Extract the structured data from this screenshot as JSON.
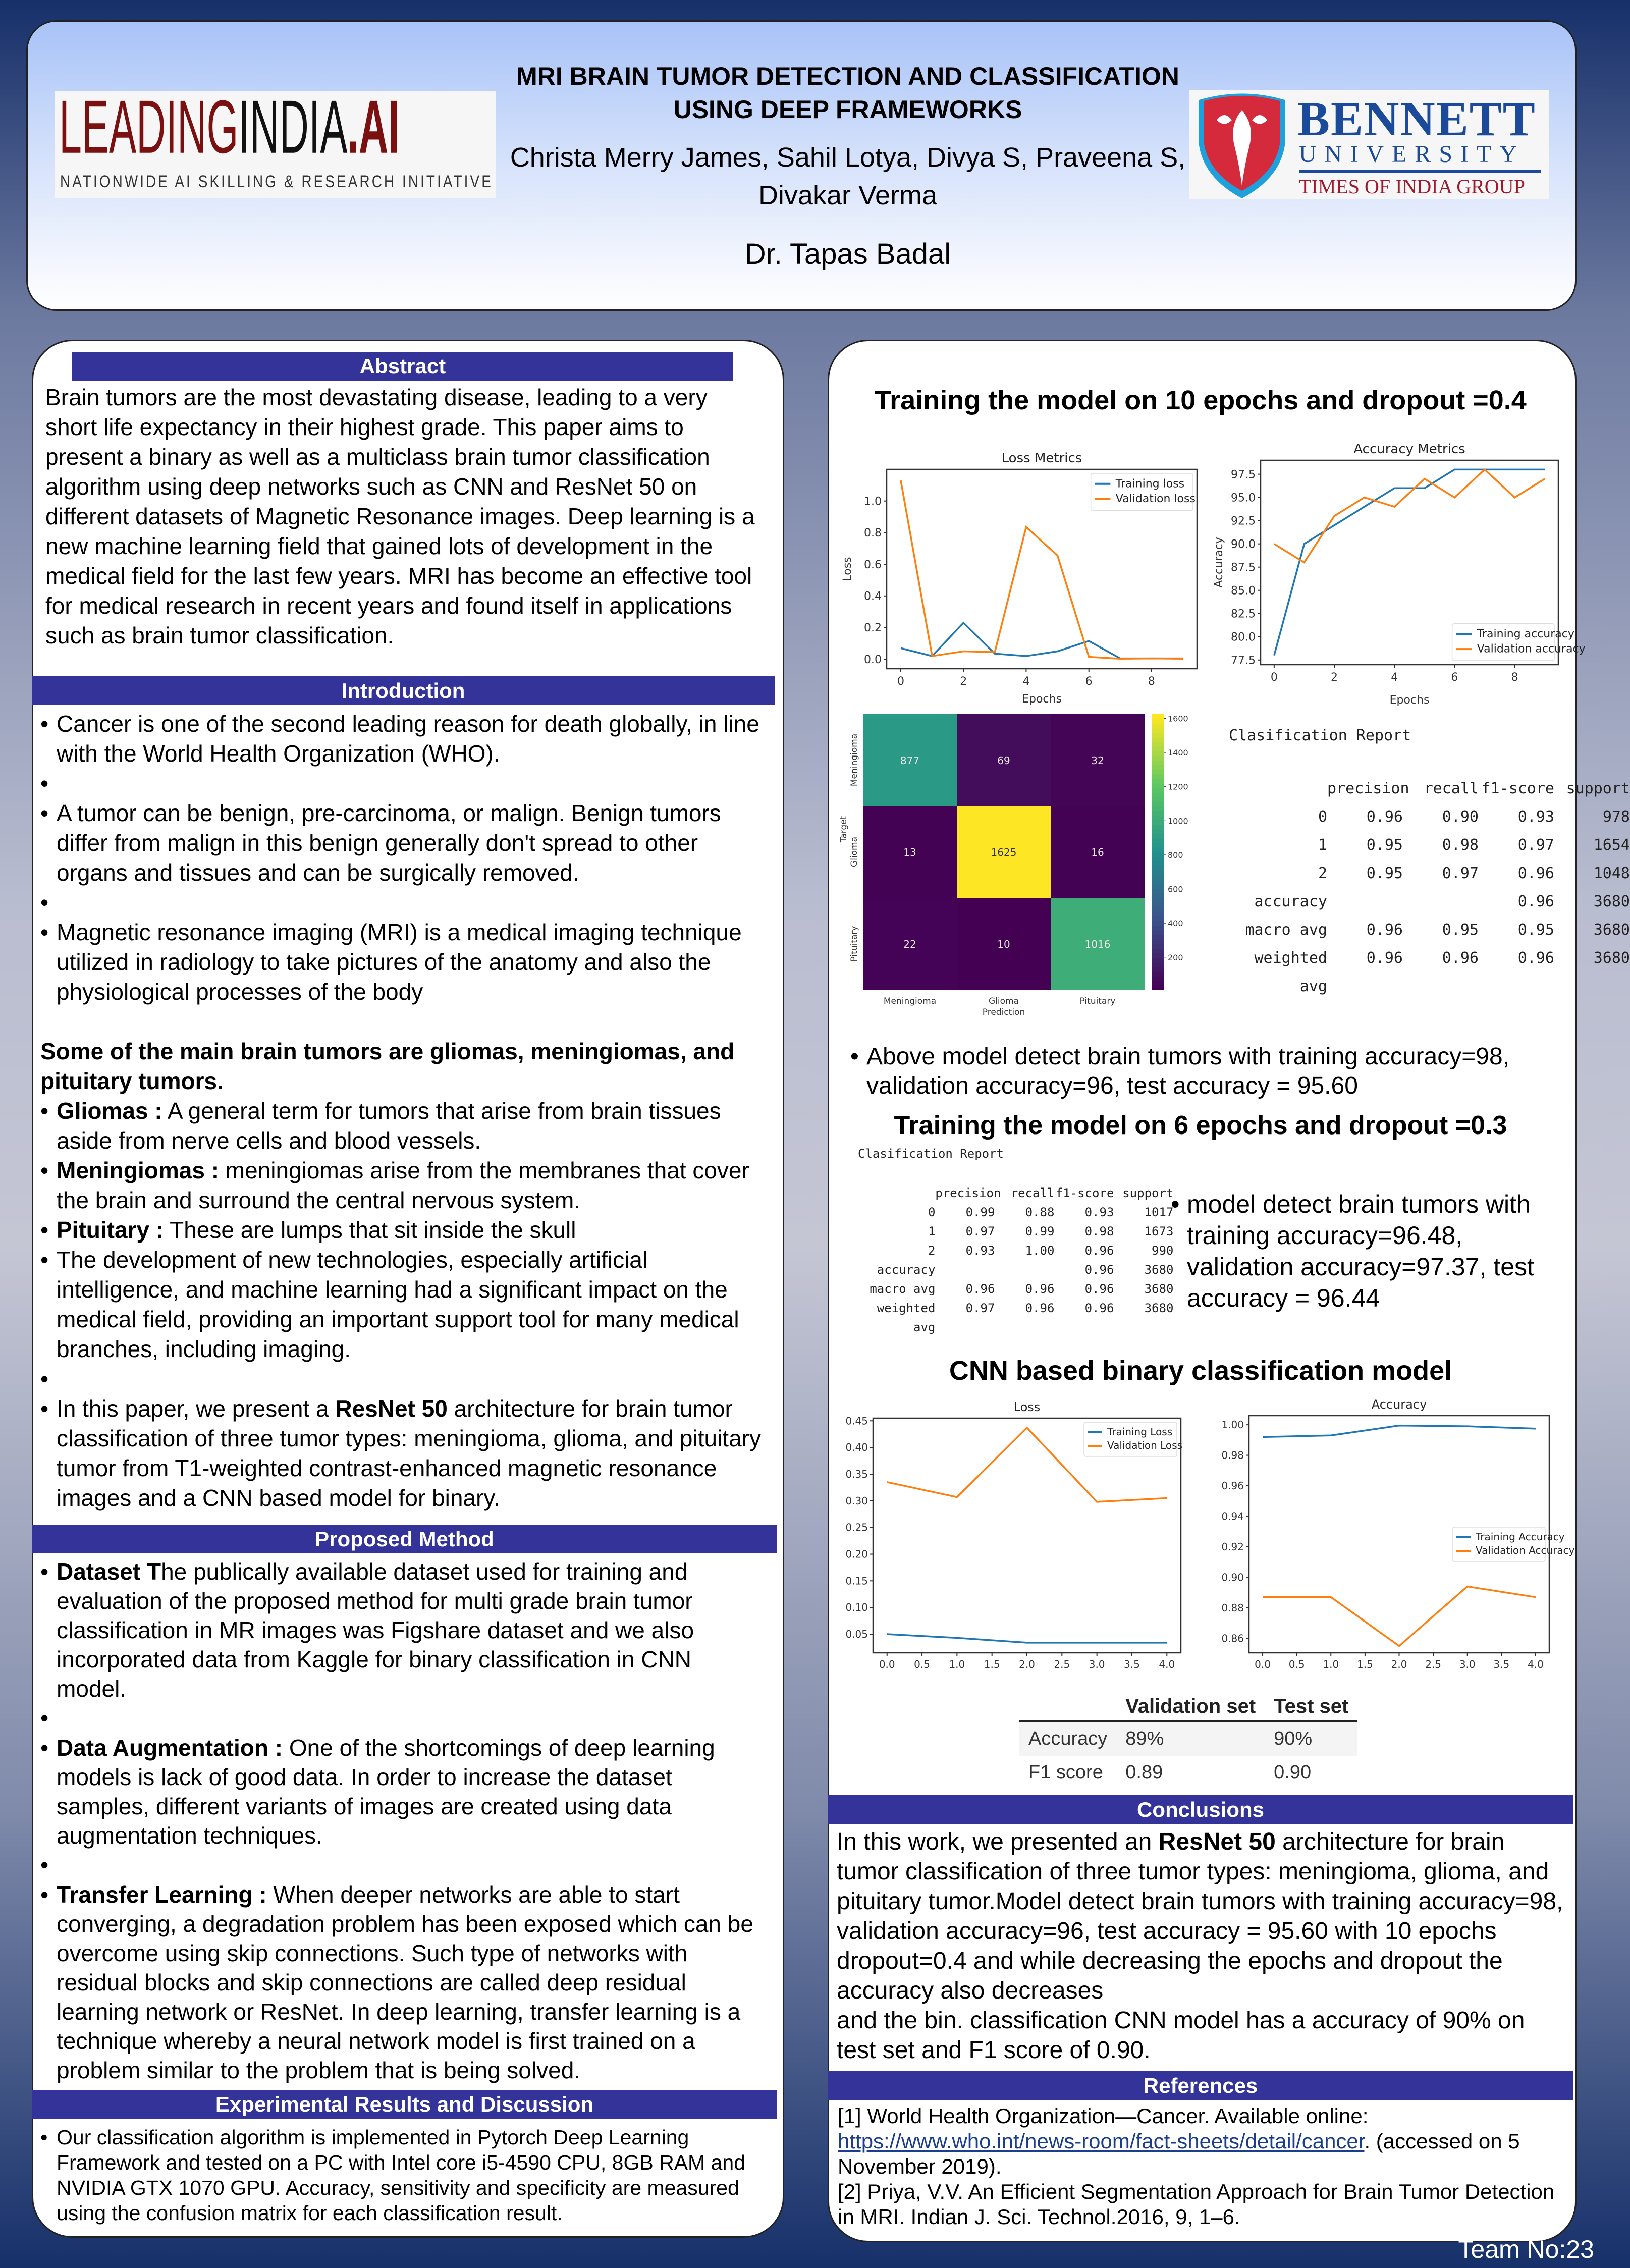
{
  "header": {
    "title_line1": "MRI BRAIN TUMOR DETECTION AND CLASSIFICATION",
    "title_line2": "USING DEEP FRAMEWORKS",
    "authors_line1": "Christa Merry James, Sahil Lotya, Divya S, Praveena S,",
    "authors_line2": "Divakar Verma",
    "supervisor": "Dr. Tapas Badal",
    "logo_left": {
      "part1": "LEADING",
      "part2": "INDIA",
      "part3": ".AI",
      "tagline": "NATIONWIDE AI SKILLING & RESEARCH INITIATIVE"
    },
    "logo_right": {
      "name": "BENNETT",
      "sub": "UNIVERSITY",
      "group": "TIMES OF INDIA GROUP"
    }
  },
  "abstract": {
    "heading": "Abstract",
    "text": "Brain tumors are the most devastating disease, leading to a very short life expectancy in their highest grade. This paper aims to present a binary as well as a multiclass brain tumor classification algorithm using deep networks such as CNN and ResNet 50 on different datasets of Magnetic Resonance images. Deep learning is a new machine learning field that gained lots of development in the medical field for the last few years. MRI has become an effective tool for medical research in recent years and found itself in applications such as brain tumor classification."
  },
  "introduction": {
    "heading": "Introduction",
    "bullets": [
      "Cancer is one of the second leading reason for death globally, in line with the World Health Organization (WHO).",
      "A tumor can be benign, pre-carcinoma, or malign. Benign tumors differ from malign in this benign generally don't spread to other organs and tissues and can be surgically removed.",
      "Magnetic resonance imaging (MRI) is a medical imaging technique utilized in radiology to take pictures of the anatomy and also the physiological processes of the body"
    ],
    "types_heading": "Some of the main brain tumors are gliomas, meningiomas, and pituitary tumors.",
    "types": [
      {
        "lead": "Gliomas :",
        "text": " A general term for tumors that arise from brain tissues aside from nerve cells and blood vessels."
      },
      {
        "lead": "Meningiomas :",
        "text": " meningiomas arise from the membranes that cover the brain and surround the central nervous system."
      },
      {
        "lead": "Pituitary :",
        "text": "  These are lumps that sit inside the skull"
      }
    ],
    "development": "The development of new technologies, especially artificial intelligence, and machine learning had a significant impact on the medical field, providing an important support tool for many medical branches, including imaging.",
    "paper_pre": "In this paper, we present a ",
    "paper_bold": "ResNet 50",
    "paper_post": " architecture for brain tumor classification of three tumor types: meningioma, glioma, and pituitary tumor from T1-weighted contrast-enhanced magnetic resonance images and a CNN based model for binary."
  },
  "method": {
    "heading": "Proposed  Method",
    "items": [
      {
        "lead": "Dataset T",
        "text": "he publically available dataset used for training and evaluation of the proposed method for multi grade brain tumor classification in MR images was Figshare dataset and we also incorporated data from Kaggle for binary classification in CNN model."
      },
      {
        "lead": "Data Augmentation :",
        "text": " One of the shortcomings of deep learning models is lack of good data. In order to increase the dataset samples, different variants of images are created using data augmentation techniques."
      },
      {
        "lead": "Transfer Learning :",
        "text": " When deeper networks are able to start converging, a degradation problem has been exposed which can be overcome using skip connections. Such type of networks with residual blocks and skip connections are called deep residual learning network or ResNet. In deep learning, transfer learning is a technique whereby a neural network model is first trained on a problem similar to the problem that is being solved."
      }
    ]
  },
  "experimental": {
    "heading": "Experimental Results and Discussion",
    "text": "Our classification algorithm is implemented in Pytorch Deep Learning Framework and tested on a PC with Intel core i5-4590 CPU, 8GB RAM and NVIDIA GTX 1070 GPU. Accuracy, sensitivity and specificity are measured using the confusion matrix for each classification result."
  },
  "results": {
    "title_10ep": "Training the model on 10 epochs and dropout =0.4",
    "bullet_10ep": "Above model detect brain tumors with training accuracy=98, validation accuracy=96, test accuracy = 95.60",
    "title_6ep": "Training the model on 6 epochs and dropout =0.3",
    "bullet_6ep": " model detect brain tumors with training accuracy=96.48, validation accuracy=97.37, test accuracy = 96.44",
    "title_cnn": "CNN based binary classification model",
    "report_10ep": {
      "title": "Clasification Report",
      "columns": [
        "",
        "precision",
        "recall",
        "f1-score",
        "support"
      ],
      "rows": [
        [
          "0",
          "0.96",
          "0.90",
          "0.93",
          "978"
        ],
        [
          "1",
          "0.95",
          "0.98",
          "0.97",
          "1654"
        ],
        [
          "2",
          "0.95",
          "0.97",
          "0.96",
          "1048"
        ]
      ],
      "summary": [
        [
          "accuracy",
          "",
          "",
          "0.96",
          "3680"
        ],
        [
          "macro avg",
          "0.96",
          "0.95",
          "0.95",
          "3680"
        ],
        [
          "weighted avg",
          "0.96",
          "0.96",
          "0.96",
          "3680"
        ]
      ]
    },
    "report_6ep": {
      "title": "Clasification Report",
      "columns": [
        "",
        "precision",
        "recall",
        "f1-score",
        "support"
      ],
      "rows": [
        [
          "0",
          "0.99",
          "0.88",
          "0.93",
          "1017"
        ],
        [
          "1",
          "0.97",
          "0.99",
          "0.98",
          "1673"
        ],
        [
          "2",
          "0.93",
          "1.00",
          "0.96",
          "990"
        ]
      ],
      "summary": [
        [
          "accuracy",
          "",
          "",
          "0.96",
          "3680"
        ],
        [
          "macro avg",
          "0.96",
          "0.96",
          "0.96",
          "3680"
        ],
        [
          "weighted avg",
          "0.97",
          "0.96",
          "0.96",
          "3680"
        ]
      ]
    },
    "cnn_table": {
      "columns": [
        "",
        "Validation set",
        "Test set"
      ],
      "rows": [
        [
          "Accuracy",
          "89%",
          "90%"
        ],
        [
          "F1 score",
          "0.89",
          "0.90"
        ]
      ]
    }
  },
  "conclusions": {
    "heading": "Conclusions",
    "pre": "In this work, we presented an ",
    "bold": "ResNet 50",
    "post": " architecture for brain tumor classification of three tumor types: meningioma, glioma, and pituitary tumor.",
    "model": "Model detect brain tumors with training accuracy=98, validation accuracy=96, test accuracy = 95.60 with 10 epochs dropout=0.4 and while decreasing the epochs and dropout the accuracy also decreases",
    "binary": "and the bin. classification CNN model has a accuracy of 90% on test set and F1 score of 0.90."
  },
  "references": {
    "heading": "References",
    "ref1_pre": "[1] World Health Organization—Cancer. Available online: ",
    "ref1_link": "https://www.who.int/news-room/fact-sheets/detail/cancer",
    "ref1_post": ".  (accessed on 5 November 2019).",
    "ref2": "[2] Priya, V.V. An Efficient Segmentation Approach for Brain Tumor Detection in MRI. Indian J. Sci. Technol.2016, 9, 1–6."
  },
  "team": "Team No:23",
  "colors": {
    "section_bar": "#333399",
    "training": "#1f77b4",
    "validation": "#ff7f0e"
  },
  "chart_data": [
    {
      "type": "line",
      "title": "Loss Metrics",
      "xlabel": "Epochs",
      "ylabel": "Loss",
      "x": [
        0,
        1,
        2,
        3,
        4,
        5,
        6,
        7,
        8,
        9
      ],
      "xlim": [
        -0.45,
        9.45
      ],
      "ylim": [
        -0.06,
        1.2
      ],
      "xticks": [
        0,
        2,
        4,
        6,
        8
      ],
      "yticks": [
        0.0,
        0.2,
        0.4,
        0.6,
        0.8,
        1.0
      ],
      "tick_decimals": 1,
      "legend": "upper right",
      "grid": false,
      "series": [
        {
          "name": "Training loss",
          "values": [
            0.07,
            0.02,
            0.23,
            0.035,
            0.02,
            0.05,
            0.115,
            0.005,
            0.005,
            0.005
          ]
        },
        {
          "name": "Validation loss",
          "values": [
            1.13,
            0.02,
            0.05,
            0.045,
            0.835,
            0.655,
            0.015,
            0.003,
            0.005,
            0.003
          ]
        }
      ]
    },
    {
      "type": "line",
      "title": "Accuracy Metrics",
      "xlabel": "Epochs",
      "ylabel": "Accuracy",
      "x": [
        0,
        1,
        2,
        3,
        4,
        5,
        6,
        7,
        8,
        9
      ],
      "xlim": [
        -0.45,
        9.45
      ],
      "ylim": [
        77,
        99
      ],
      "xticks": [
        0,
        2,
        4,
        6,
        8
      ],
      "yticks": [
        77.5,
        80.0,
        82.5,
        85.0,
        87.5,
        90.0,
        92.5,
        95.0,
        97.5
      ],
      "tick_decimals": 1,
      "legend": "lower right",
      "grid": false,
      "series": [
        {
          "name": "Training accuracy",
          "values": [
            78,
            90,
            92,
            94,
            96,
            96,
            98,
            98,
            98,
            98
          ]
        },
        {
          "name": "Validation accuracy",
          "values": [
            90,
            88,
            93,
            95,
            94,
            97,
            95,
            98,
            95,
            97
          ]
        }
      ]
    },
    {
      "type": "heatmap",
      "xlabel": "Prediction",
      "ylabel": "Target",
      "categories": [
        "Meningioma",
        "Glioma",
        "Pituitary"
      ],
      "matrix": [
        [
          877,
          69,
          32
        ],
        [
          13,
          1625,
          16
        ],
        [
          22,
          10,
          1016
        ]
      ],
      "colorbar_ticks": [
        200,
        400,
        600,
        800,
        1000,
        1200,
        1400,
        1600
      ],
      "colormap": "viridis"
    },
    {
      "type": "line",
      "title": "Loss",
      "xlabel": "",
      "ylabel": "",
      "x": [
        0,
        1,
        2,
        3,
        4
      ],
      "xlim": [
        -0.2,
        4.2
      ],
      "ylim": [
        0.015,
        0.455
      ],
      "xticks": [
        0,
        0.5,
        1,
        1.5,
        2,
        2.5,
        3,
        3.5,
        4
      ],
      "yticks": [
        0.05,
        0.1,
        0.15,
        0.2,
        0.25,
        0.3,
        0.35,
        0.4,
        0.45
      ],
      "tick_decimals": 2,
      "xtick_decimals": 1,
      "legend": "upper right",
      "grid": false,
      "series": [
        {
          "name": "Training Loss",
          "values": [
            0.05,
            0.043,
            0.034,
            0.034,
            0.034
          ]
        },
        {
          "name": "Validation Loss",
          "values": [
            0.335,
            0.307,
            0.437,
            0.298,
            0.305
          ]
        }
      ]
    },
    {
      "type": "line",
      "title": "Accuracy",
      "xlabel": "",
      "ylabel": "",
      "x": [
        0,
        1,
        2,
        3,
        4
      ],
      "xlim": [
        -0.2,
        4.2
      ],
      "ylim": [
        0.8505,
        1.006
      ],
      "xticks": [
        0,
        0.5,
        1,
        1.5,
        2,
        2.5,
        3,
        3.5,
        4
      ],
      "yticks": [
        0.86,
        0.88,
        0.9,
        0.92,
        0.94,
        0.96,
        0.98,
        1.0
      ],
      "tick_decimals": 2,
      "xtick_decimals": 1,
      "legend": "center right",
      "grid": false,
      "series": [
        {
          "name": "Training Accuracy",
          "values": [
            0.992,
            0.993,
            0.9995,
            0.999,
            0.9975
          ]
        },
        {
          "name": "Validation Accuracy",
          "values": [
            0.887,
            0.887,
            0.855,
            0.894,
            0.887
          ]
        }
      ]
    }
  ]
}
